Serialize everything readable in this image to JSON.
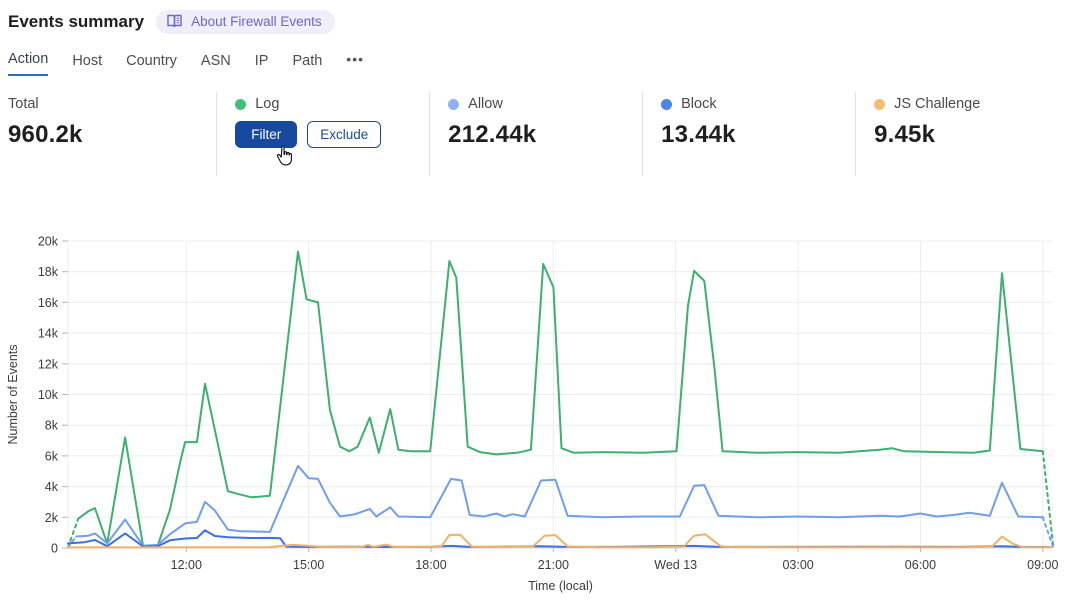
{
  "header": {
    "title": "Events summary",
    "badge_label": "About Firewall Events"
  },
  "tabs": {
    "items": [
      {
        "label": "Action",
        "active": true
      },
      {
        "label": "Host",
        "active": false
      },
      {
        "label": "Country",
        "active": false
      },
      {
        "label": "ASN",
        "active": false
      },
      {
        "label": "IP",
        "active": false
      },
      {
        "label": "Path",
        "active": false
      }
    ],
    "more": "•••"
  },
  "stats": {
    "total": {
      "label": "Total",
      "value": "960.2k"
    },
    "log": {
      "label": "Log",
      "dot_color": "#40c078",
      "filter_label": "Filter",
      "exclude_label": "Exclude"
    },
    "allow": {
      "label": "Allow",
      "dot_color": "#8fb3f2",
      "value": "212.44k"
    },
    "block": {
      "label": "Block",
      "dot_color": "#4a86e8",
      "value": "13.44k"
    },
    "js_challenge": {
      "label": "JS Challenge",
      "dot_color": "#f2bc72",
      "value": "9.45k"
    }
  },
  "accent": {
    "button_blue": "#17499f",
    "tab_underline": "#2f6bc4",
    "badge_purple": "#6b66cc"
  },
  "chart_data": {
    "type": "line",
    "xlabel": "Time (local)",
    "ylabel": "Number of Events",
    "x_range": [
      9.1,
      33.25
    ],
    "y_range": [
      0,
      20000
    ],
    "grid": true,
    "y_ticks": [
      {
        "v": 0,
        "label": "0"
      },
      {
        "v": 2000,
        "label": "2k"
      },
      {
        "v": 4000,
        "label": "4k"
      },
      {
        "v": 6000,
        "label": "6k"
      },
      {
        "v": 8000,
        "label": "8k"
      },
      {
        "v": 10000,
        "label": "10k"
      },
      {
        "v": 12000,
        "label": "12k"
      },
      {
        "v": 14000,
        "label": "14k"
      },
      {
        "v": 16000,
        "label": "16k"
      },
      {
        "v": 18000,
        "label": "18k"
      },
      {
        "v": 20000,
        "label": "20k"
      }
    ],
    "x_ticks": [
      {
        "t": 12,
        "label": "12:00"
      },
      {
        "t": 15,
        "label": "15:00"
      },
      {
        "t": 18,
        "label": "18:00"
      },
      {
        "t": 21,
        "label": "21:00"
      },
      {
        "t": 24,
        "label": "Wed 13"
      },
      {
        "t": 27,
        "label": "03:00"
      },
      {
        "t": 30,
        "label": "06:00"
      },
      {
        "t": 33,
        "label": "09:00"
      }
    ],
    "series": [
      {
        "name": "Log",
        "color": "#3cb06e",
        "lead_in": [
          [
            9.1,
            50
          ],
          [
            9.35,
            1900
          ]
        ],
        "lead_out": [
          [
            33.0,
            6300
          ],
          [
            33.25,
            200
          ]
        ],
        "points": [
          [
            9.35,
            1900
          ],
          [
            9.6,
            2400
          ],
          [
            9.76,
            2600
          ],
          [
            10.06,
            300
          ],
          [
            10.5,
            7200
          ],
          [
            10.94,
            150
          ],
          [
            11.3,
            150
          ],
          [
            11.6,
            2500
          ],
          [
            11.85,
            5600
          ],
          [
            11.97,
            6900
          ],
          [
            12.26,
            6900
          ],
          [
            12.46,
            10700
          ],
          [
            13.02,
            3700
          ],
          [
            13.3,
            3500
          ],
          [
            13.6,
            3300
          ],
          [
            14.05,
            3400
          ],
          [
            14.74,
            19300
          ],
          [
            14.95,
            16200
          ],
          [
            15.23,
            16000
          ],
          [
            15.52,
            9000
          ],
          [
            15.77,
            6600
          ],
          [
            16.0,
            6300
          ],
          [
            16.2,
            6600
          ],
          [
            16.5,
            8500
          ],
          [
            16.72,
            6200
          ],
          [
            17.0,
            9050
          ],
          [
            17.2,
            6400
          ],
          [
            17.5,
            6300
          ],
          [
            17.98,
            6300
          ],
          [
            18.45,
            18700
          ],
          [
            18.62,
            17600
          ],
          [
            18.9,
            6600
          ],
          [
            19.2,
            6250
          ],
          [
            19.6,
            6100
          ],
          [
            20.1,
            6200
          ],
          [
            20.45,
            6400
          ],
          [
            20.75,
            18500
          ],
          [
            21.0,
            17000
          ],
          [
            21.2,
            6500
          ],
          [
            21.5,
            6200
          ],
          [
            22.2,
            6250
          ],
          [
            23.2,
            6200
          ],
          [
            24.02,
            6300
          ],
          [
            24.3,
            15800
          ],
          [
            24.45,
            18050
          ],
          [
            24.7,
            17400
          ],
          [
            24.95,
            11700
          ],
          [
            25.15,
            6300
          ],
          [
            26.0,
            6200
          ],
          [
            27.0,
            6250
          ],
          [
            28.0,
            6200
          ],
          [
            29.0,
            6400
          ],
          [
            29.3,
            6500
          ],
          [
            29.6,
            6300
          ],
          [
            30.5,
            6250
          ],
          [
            31.3,
            6200
          ],
          [
            31.7,
            6350
          ],
          [
            32.0,
            17900
          ],
          [
            32.45,
            6450
          ],
          [
            33.0,
            6300
          ]
        ]
      },
      {
        "name": "Allow",
        "color": "#6f9ef0",
        "lead_in": [
          [
            9.1,
            50
          ],
          [
            9.3,
            750
          ]
        ],
        "lead_out": [
          [
            33.0,
            2000
          ],
          [
            33.25,
            100
          ]
        ],
        "points": [
          [
            9.3,
            750
          ],
          [
            9.6,
            800
          ],
          [
            9.76,
            950
          ],
          [
            10.06,
            300
          ],
          [
            10.5,
            1850
          ],
          [
            10.94,
            150
          ],
          [
            11.3,
            200
          ],
          [
            11.6,
            900
          ],
          [
            11.97,
            1600
          ],
          [
            12.26,
            1700
          ],
          [
            12.46,
            3000
          ],
          [
            12.7,
            2450
          ],
          [
            13.02,
            1200
          ],
          [
            13.3,
            1100
          ],
          [
            14.05,
            1050
          ],
          [
            14.74,
            5350
          ],
          [
            15.0,
            4550
          ],
          [
            15.23,
            4500
          ],
          [
            15.52,
            2950
          ],
          [
            15.77,
            2050
          ],
          [
            16.14,
            2200
          ],
          [
            16.5,
            2550
          ],
          [
            16.66,
            2050
          ],
          [
            17.0,
            2650
          ],
          [
            17.2,
            2050
          ],
          [
            17.98,
            2000
          ],
          [
            18.49,
            4500
          ],
          [
            18.75,
            4400
          ],
          [
            18.95,
            2150
          ],
          [
            19.3,
            2050
          ],
          [
            19.6,
            2250
          ],
          [
            19.8,
            2050
          ],
          [
            20.0,
            2200
          ],
          [
            20.3,
            2050
          ],
          [
            20.7,
            4400
          ],
          [
            21.05,
            4450
          ],
          [
            21.35,
            2100
          ],
          [
            22.2,
            2000
          ],
          [
            23.2,
            2050
          ],
          [
            24.1,
            2050
          ],
          [
            24.45,
            4050
          ],
          [
            24.7,
            4100
          ],
          [
            25.05,
            2100
          ],
          [
            26.0,
            2000
          ],
          [
            27.0,
            2050
          ],
          [
            28.0,
            2000
          ],
          [
            29.0,
            2100
          ],
          [
            29.5,
            2050
          ],
          [
            30.0,
            2250
          ],
          [
            30.4,
            2050
          ],
          [
            30.8,
            2150
          ],
          [
            31.2,
            2300
          ],
          [
            31.7,
            2100
          ],
          [
            32.0,
            4250
          ],
          [
            32.4,
            2050
          ],
          [
            33.0,
            2000
          ]
        ]
      },
      {
        "name": "Block",
        "color": "#3a70e3",
        "points": [
          [
            9.1,
            300
          ],
          [
            9.5,
            380
          ],
          [
            9.76,
            520
          ],
          [
            10.06,
            120
          ],
          [
            10.5,
            950
          ],
          [
            10.94,
            100
          ],
          [
            11.3,
            120
          ],
          [
            11.6,
            500
          ],
          [
            11.97,
            620
          ],
          [
            12.26,
            650
          ],
          [
            12.46,
            1150
          ],
          [
            12.7,
            780
          ],
          [
            13.02,
            700
          ],
          [
            13.6,
            650
          ],
          [
            14.05,
            660
          ],
          [
            14.3,
            640
          ],
          [
            14.45,
            90
          ],
          [
            15.0,
            70
          ],
          [
            16.0,
            80
          ],
          [
            17.0,
            70
          ],
          [
            17.98,
            70
          ],
          [
            18.5,
            140
          ],
          [
            18.9,
            80
          ],
          [
            19.5,
            70
          ],
          [
            20.7,
            120
          ],
          [
            21.2,
            75
          ],
          [
            22.5,
            70
          ],
          [
            24.45,
            140
          ],
          [
            25.0,
            75
          ],
          [
            27.0,
            70
          ],
          [
            29.0,
            75
          ],
          [
            31.0,
            70
          ],
          [
            32.0,
            120
          ],
          [
            32.5,
            70
          ],
          [
            33.15,
            65
          ]
        ]
      },
      {
        "name": "JS Challenge",
        "color": "#f0b169",
        "points": [
          [
            9.1,
            40
          ],
          [
            10.0,
            45
          ],
          [
            11.0,
            40
          ],
          [
            12.0,
            50
          ],
          [
            13.0,
            45
          ],
          [
            14.0,
            50
          ],
          [
            14.6,
            200
          ],
          [
            15.0,
            150
          ],
          [
            15.4,
            60
          ],
          [
            16.3,
            60
          ],
          [
            16.45,
            200
          ],
          [
            16.6,
            80
          ],
          [
            16.9,
            220
          ],
          [
            17.1,
            60
          ],
          [
            18.25,
            90
          ],
          [
            18.45,
            850
          ],
          [
            18.72,
            860
          ],
          [
            19.0,
            100
          ],
          [
            19.5,
            60
          ],
          [
            20.5,
            100
          ],
          [
            20.78,
            800
          ],
          [
            21.05,
            840
          ],
          [
            21.35,
            100
          ],
          [
            22.2,
            50
          ],
          [
            23.5,
            50
          ],
          [
            24.2,
            100
          ],
          [
            24.45,
            800
          ],
          [
            24.72,
            900
          ],
          [
            25.1,
            120
          ],
          [
            25.4,
            60
          ],
          [
            27.0,
            50
          ],
          [
            29.0,
            55
          ],
          [
            31.0,
            50
          ],
          [
            31.75,
            80
          ],
          [
            32.0,
            750
          ],
          [
            32.25,
            300
          ],
          [
            32.5,
            60
          ],
          [
            33.2,
            45
          ]
        ]
      }
    ]
  }
}
